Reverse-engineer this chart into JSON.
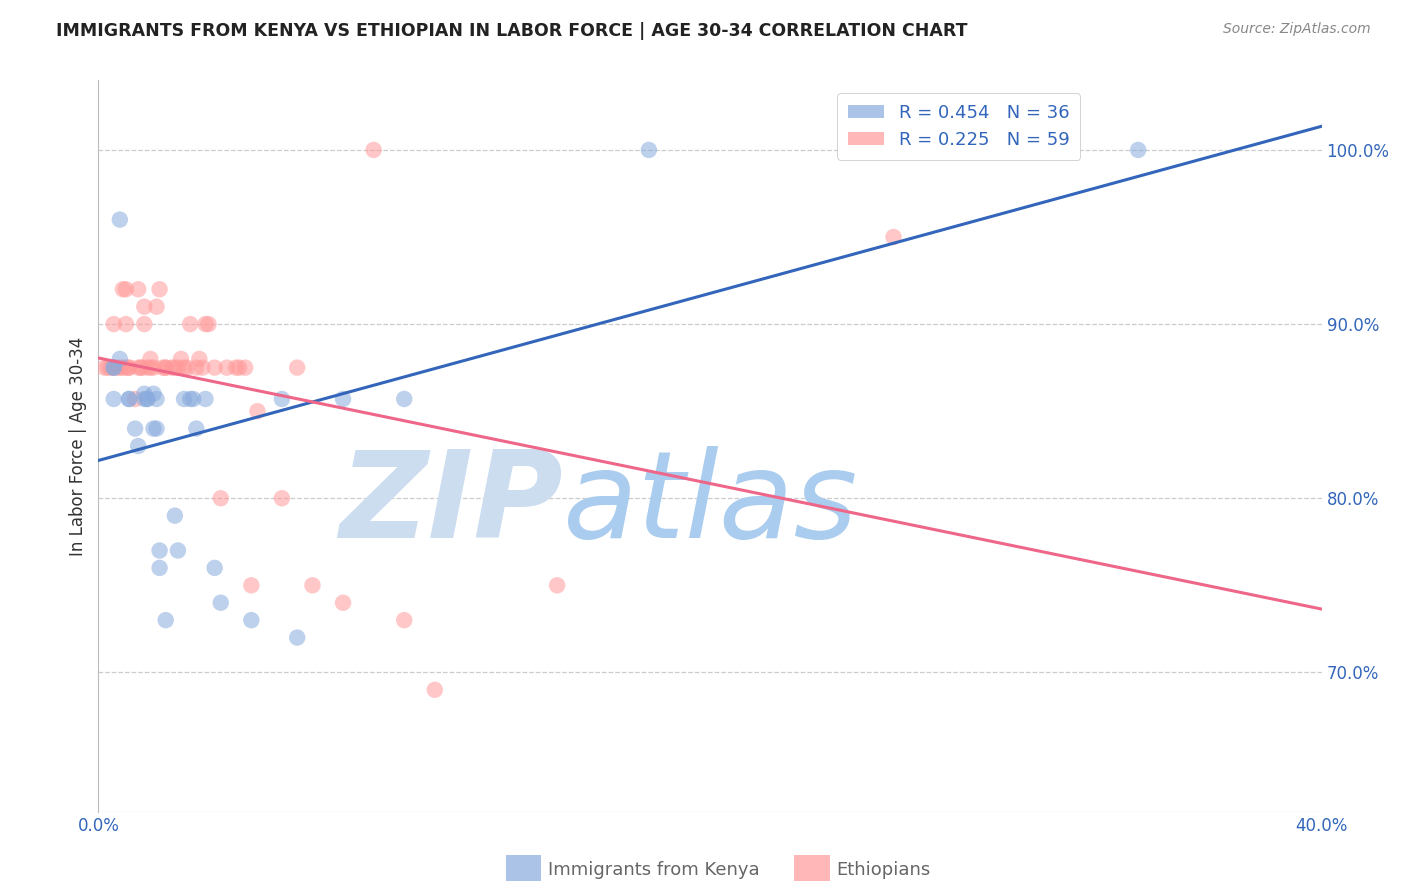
{
  "title": "IMMIGRANTS FROM KENYA VS ETHIOPIAN IN LABOR FORCE | AGE 30-34 CORRELATION CHART",
  "source": "Source: ZipAtlas.com",
  "ylabel": "In Labor Force | Age 30-34",
  "xlim": [
    0.0,
    0.4
  ],
  "ylim": [
    0.62,
    1.04
  ],
  "xticks": [
    0.0,
    0.05,
    0.1,
    0.15,
    0.2,
    0.25,
    0.3,
    0.35,
    0.4
  ],
  "xtick_labels": [
    "0.0%",
    "",
    "",
    "",
    "",
    "",
    "",
    "",
    "40.0%"
  ],
  "ytick_right": [
    0.7,
    0.8,
    0.9,
    1.0
  ],
  "ytick_right_labels": [
    "70.0%",
    "80.0%",
    "90.0%",
    "100.0%"
  ],
  "kenya_R": 0.454,
  "kenya_N": 36,
  "ethiopia_R": 0.225,
  "ethiopia_N": 59,
  "kenya_color": "#88AADD",
  "ethiopia_color": "#FF9999",
  "kenya_line_color": "#3366BB",
  "ethiopia_line_color": "#EE6688",
  "kenya_x": [
    0.005,
    0.005,
    0.005,
    0.007,
    0.007,
    0.01,
    0.01,
    0.012,
    0.013,
    0.015,
    0.015,
    0.016,
    0.016,
    0.018,
    0.018,
    0.019,
    0.019,
    0.02,
    0.02,
    0.022,
    0.025,
    0.026,
    0.028,
    0.03,
    0.031,
    0.032,
    0.035,
    0.038,
    0.04,
    0.05,
    0.06,
    0.065,
    0.08,
    0.1,
    0.18,
    0.34
  ],
  "kenya_y": [
    0.857,
    0.875,
    0.875,
    0.96,
    0.88,
    0.857,
    0.857,
    0.84,
    0.83,
    0.857,
    0.86,
    0.857,
    0.857,
    0.86,
    0.84,
    0.857,
    0.84,
    0.77,
    0.76,
    0.73,
    0.79,
    0.77,
    0.857,
    0.857,
    0.857,
    0.84,
    0.857,
    0.76,
    0.74,
    0.73,
    0.857,
    0.72,
    0.857,
    0.857,
    1.0,
    1.0
  ],
  "ethiopia_x": [
    0.002,
    0.003,
    0.004,
    0.005,
    0.005,
    0.006,
    0.007,
    0.008,
    0.008,
    0.009,
    0.009,
    0.009,
    0.01,
    0.01,
    0.012,
    0.013,
    0.013,
    0.014,
    0.014,
    0.015,
    0.015,
    0.016,
    0.017,
    0.017,
    0.018,
    0.019,
    0.02,
    0.021,
    0.022,
    0.022,
    0.024,
    0.025,
    0.026,
    0.027,
    0.028,
    0.029,
    0.03,
    0.032,
    0.033,
    0.034,
    0.035,
    0.036,
    0.038,
    0.04,
    0.042,
    0.045,
    0.046,
    0.048,
    0.05,
    0.052,
    0.06,
    0.065,
    0.07,
    0.08,
    0.09,
    0.1,
    0.11,
    0.15,
    0.26
  ],
  "ethiopia_y": [
    0.875,
    0.875,
    0.875,
    0.875,
    0.9,
    0.875,
    0.875,
    0.875,
    0.92,
    0.875,
    0.9,
    0.92,
    0.875,
    0.875,
    0.857,
    0.875,
    0.92,
    0.875,
    0.875,
    0.9,
    0.91,
    0.875,
    0.875,
    0.88,
    0.875,
    0.91,
    0.92,
    0.875,
    0.875,
    0.875,
    0.875,
    0.875,
    0.875,
    0.88,
    0.875,
    0.875,
    0.9,
    0.875,
    0.88,
    0.875,
    0.9,
    0.9,
    0.875,
    0.8,
    0.875,
    0.875,
    0.875,
    0.875,
    0.75,
    0.85,
    0.8,
    0.875,
    0.75,
    0.74,
    1.0,
    0.73,
    0.69,
    0.75,
    0.95
  ],
  "watermark_zip": "ZIP",
  "watermark_atlas": "atlas",
  "watermark_color_zip": "#CCDDF0",
  "watermark_color_atlas": "#AACCEE",
  "background_color": "#FFFFFF",
  "grid_color": "#CCCCCC",
  "title_color": "#222222",
  "axis_label_color": "#333333",
  "tick_color": "#3366BB",
  "source_color": "#888888"
}
